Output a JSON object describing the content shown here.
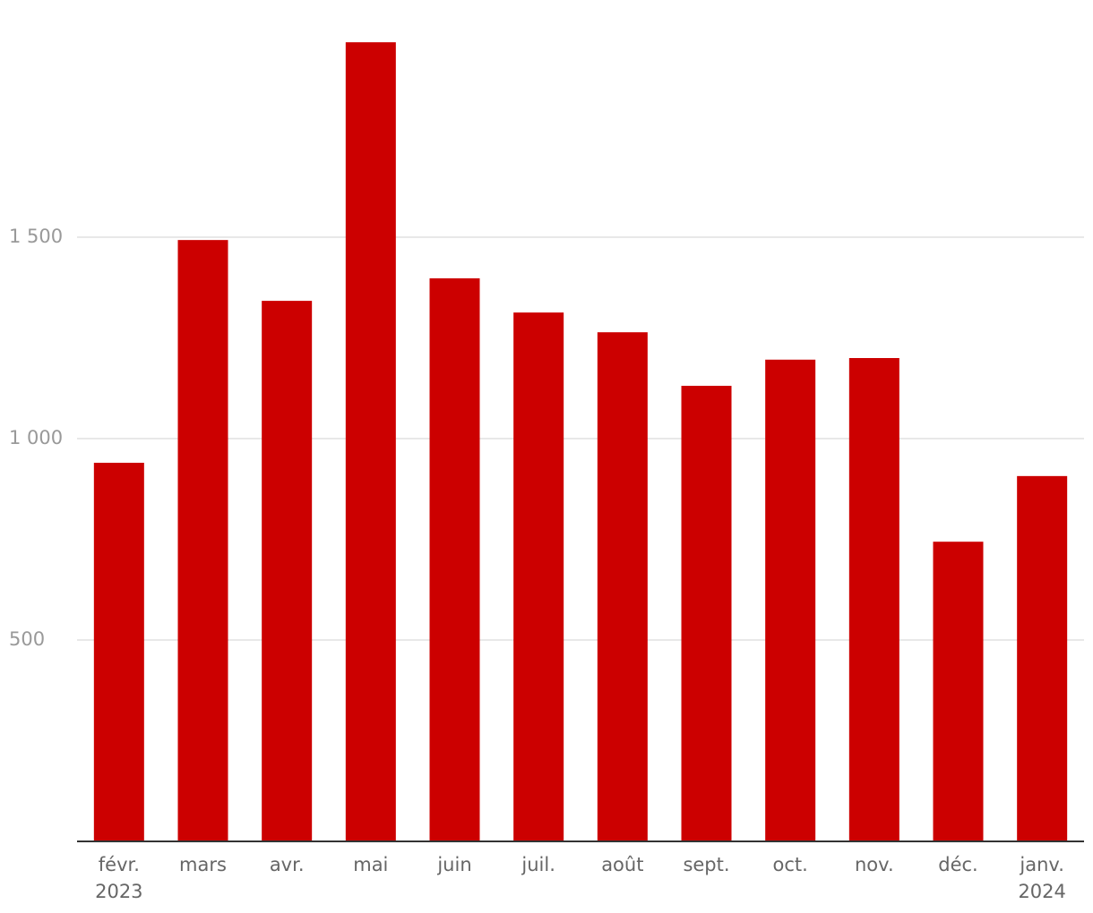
{
  "chart_data": {
    "type": "bar",
    "categories": [
      "févr.\n2023",
      "mars",
      "avr.",
      "mai",
      "juin",
      "juil.",
      "août",
      "sept.",
      "oct.",
      "nov.",
      "déc.",
      "janv.\n2024"
    ],
    "values": [
      940,
      1493,
      1342,
      1984,
      1398,
      1313,
      1264,
      1131,
      1196,
      1200,
      744,
      907
    ],
    "color": "#cc0000",
    "ylim": [
      0,
      2000
    ],
    "yticks": [
      500,
      {
        "value": 1000,
        "label": "1 000"
      },
      {
        "value": 1500,
        "label": "1 500"
      }
    ],
    "grid": true
  }
}
